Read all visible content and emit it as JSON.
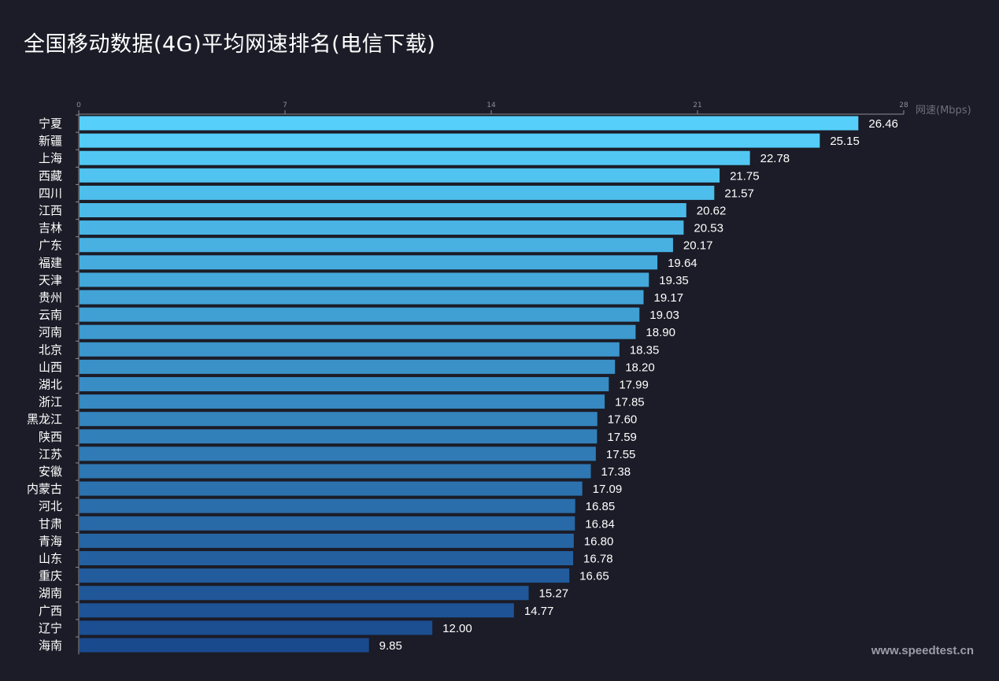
{
  "chart_data": {
    "type": "bar",
    "orientation": "horizontal",
    "title": "全国移动数据(4G)平均网速排名(电信下载)",
    "xlabel": "网速(Mbps)",
    "xlim": [
      0,
      28
    ],
    "xticks": [
      0,
      7,
      14,
      21,
      28
    ],
    "grid": false,
    "categories": [
      "宁夏",
      "新疆",
      "上海",
      "西藏",
      "四川",
      "江西",
      "吉林",
      "广东",
      "福建",
      "天津",
      "贵州",
      "云南",
      "河南",
      "北京",
      "山西",
      "湖北",
      "浙江",
      "黑龙江",
      "陕西",
      "江苏",
      "安徽",
      "内蒙古",
      "河北",
      "甘肃",
      "青海",
      "山东",
      "重庆",
      "湖南",
      "广西",
      "辽宁",
      "海南"
    ],
    "values": [
      26.46,
      25.15,
      22.78,
      21.75,
      21.57,
      20.62,
      20.53,
      20.17,
      19.64,
      19.35,
      19.17,
      19.03,
      18.9,
      18.35,
      18.2,
      17.99,
      17.85,
      17.6,
      17.59,
      17.55,
      17.38,
      17.09,
      16.85,
      16.84,
      16.8,
      16.78,
      16.65,
      15.27,
      14.77,
      12.0,
      9.85
    ],
    "value_labels": [
      "26.46",
      "25.15",
      "22.78",
      "21.75",
      "21.57",
      "20.62",
      "20.53",
      "20.17",
      "19.64",
      "19.35",
      "19.17",
      "19.03",
      "18.90",
      "18.35",
      "18.20",
      "17.99",
      "17.85",
      "17.60",
      "17.59",
      "17.55",
      "17.38",
      "17.09",
      "16.85",
      "16.84",
      "16.80",
      "16.78",
      "16.65",
      "15.27",
      "14.77",
      "12.00",
      "9.85"
    ],
    "colors": {
      "top": "#56d0fb",
      "bottom": "#1a4a8e",
      "background": "#1b1c27",
      "axis": "#8a8c96"
    }
  },
  "watermark": "www.speedtest.cn"
}
